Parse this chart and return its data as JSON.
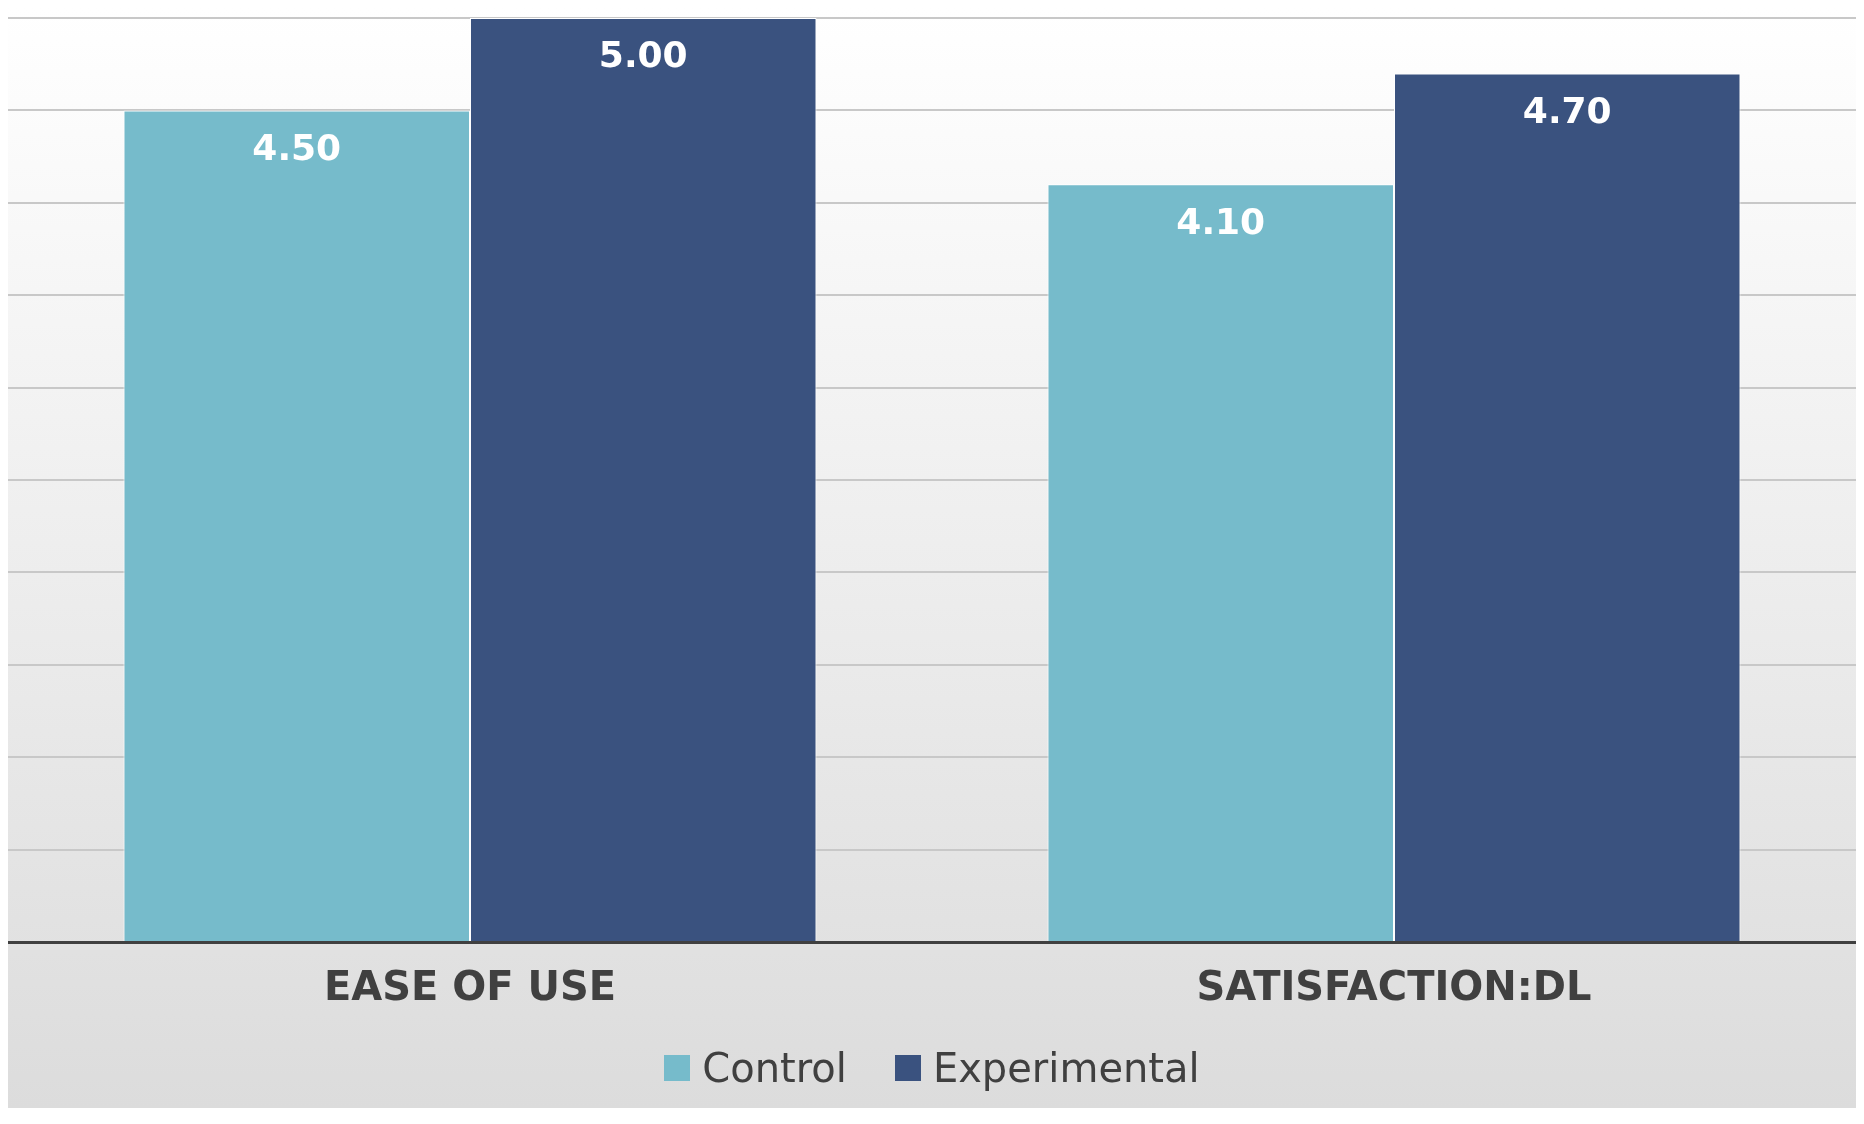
{
  "chart_data": {
    "type": "bar",
    "categories": [
      "EASE OF USE",
      "SATISFACTION:DL"
    ],
    "series": [
      {
        "name": "Control",
        "color": "#76bbcb",
        "values": [
          4.5,
          4.1
        ],
        "value_labels": [
          "4.50",
          "4.10"
        ]
      },
      {
        "name": "Experimental",
        "color": "#3a527f",
        "values": [
          5.0,
          4.7
        ],
        "value_labels": [
          "5.00",
          "4.70"
        ]
      }
    ],
    "grid": "y",
    "tick_labels": "x",
    "legend": "bottom"
  }
}
